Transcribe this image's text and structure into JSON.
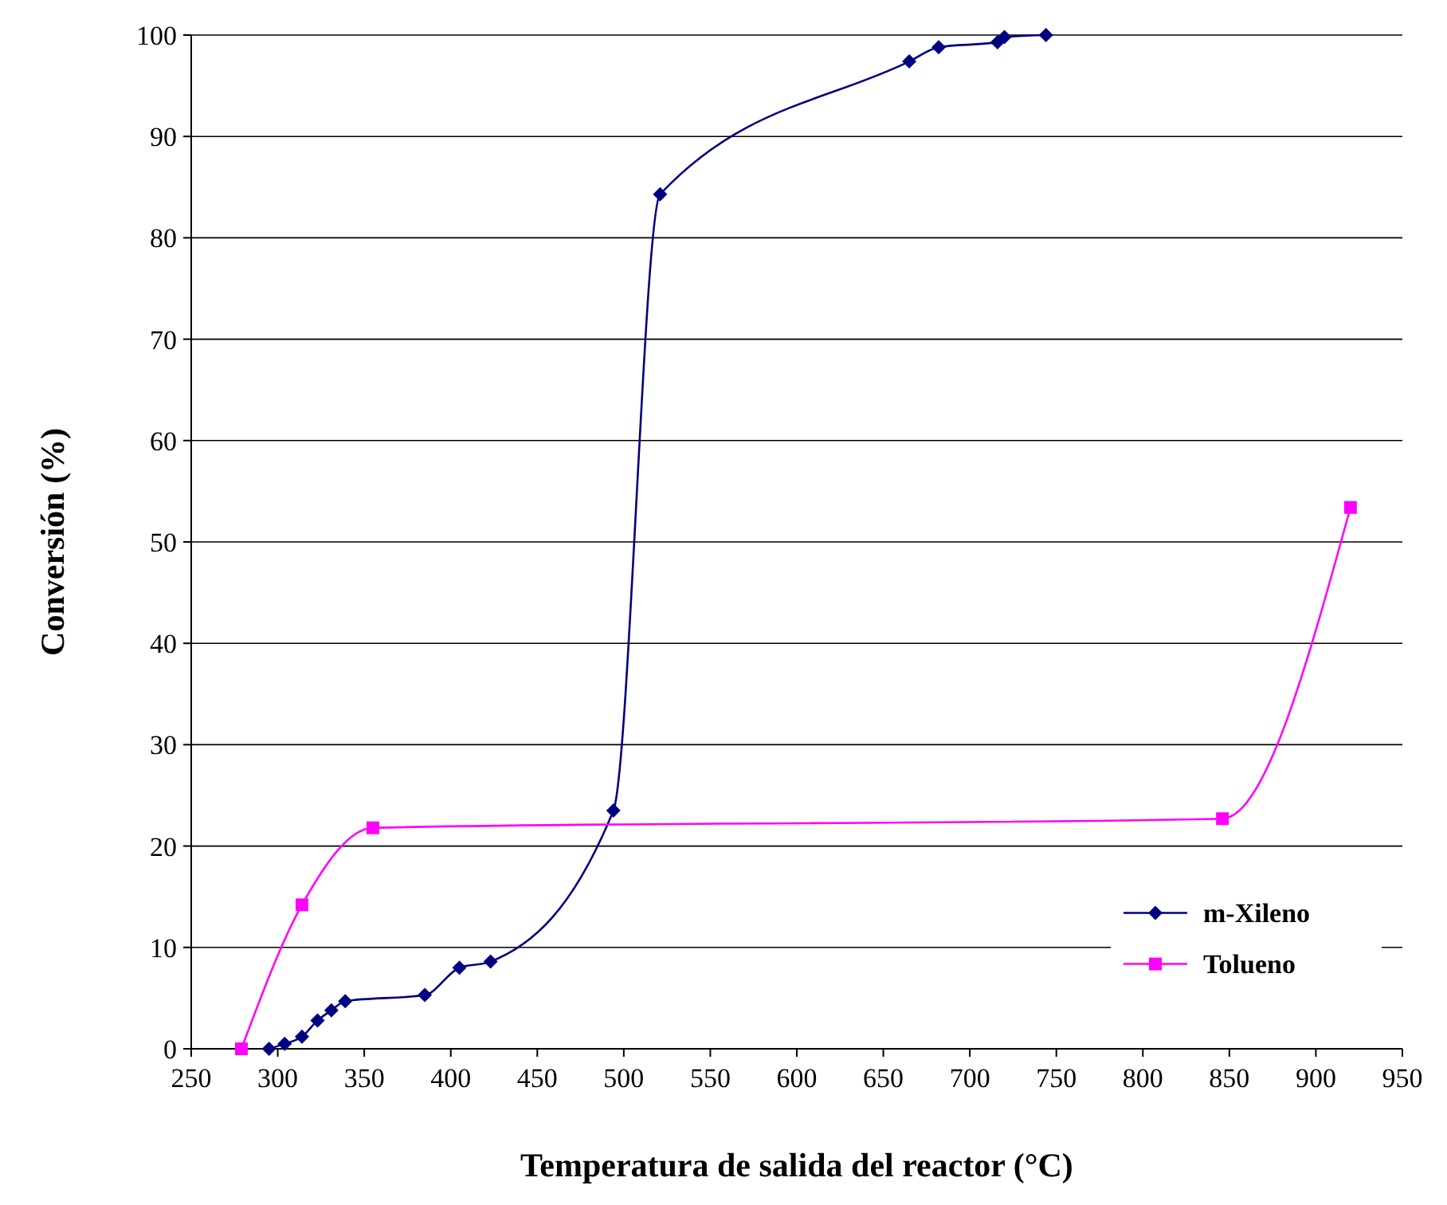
{
  "chart_data": {
    "type": "line",
    "xlabel": "Temperatura de salida del reactor (°C)",
    "ylabel": "Conversión (%)",
    "xlim": [
      250,
      950
    ],
    "xticks": [
      250,
      300,
      350,
      400,
      450,
      500,
      550,
      600,
      650,
      700,
      750,
      800,
      850,
      900,
      950
    ],
    "ylim": [
      0,
      100
    ],
    "yticks": [
      0,
      10,
      20,
      30,
      40,
      50,
      60,
      70,
      80,
      90,
      100
    ],
    "grid": "y",
    "legend": "bottom right",
    "series": [
      {
        "name": "m-Xileno",
        "color": "#000080",
        "marker": "diamond",
        "x": [
          295,
          304,
          314,
          323,
          331,
          339,
          385,
          405,
          423,
          494,
          521,
          665,
          682,
          716,
          720,
          744
        ],
        "values": [
          0,
          0.5,
          1.2,
          2.8,
          3.8,
          4.7,
          5.3,
          8,
          8.6,
          23.5,
          84.3,
          97.4,
          98.8,
          99.3,
          99.8,
          100
        ]
      },
      {
        "name": "Tolueno",
        "color": "#ff00ff",
        "marker": "square",
        "x": [
          279,
          314,
          355,
          846,
          920
        ],
        "values": [
          0,
          14.2,
          21.8,
          22.7,
          53.4
        ]
      }
    ]
  }
}
